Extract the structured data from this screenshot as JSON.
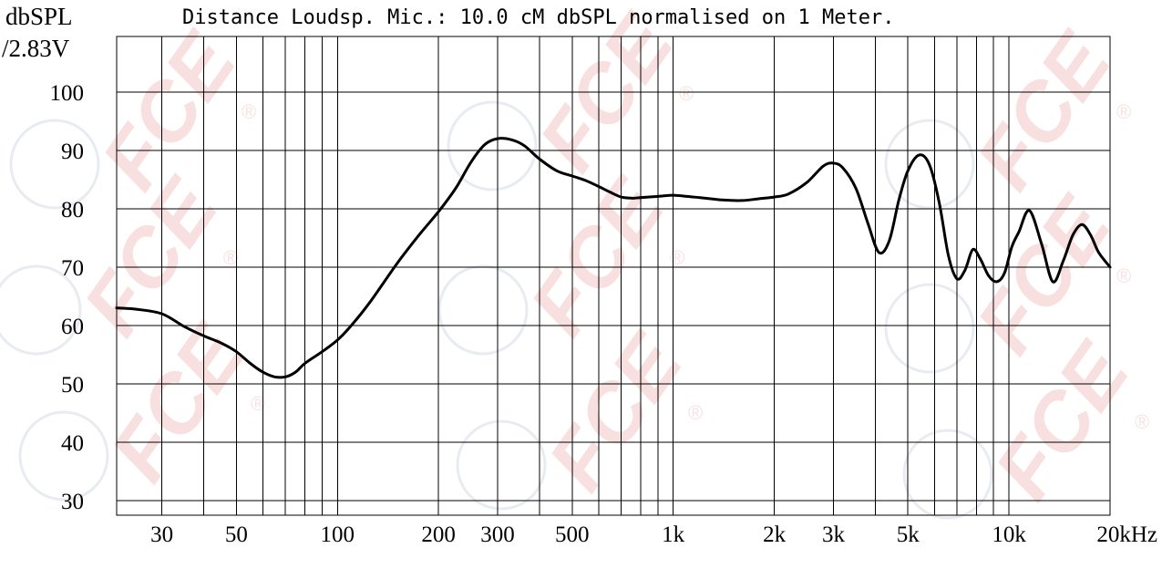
{
  "chart_data": {
    "type": "line",
    "title": "Distance Loudsp. Mic.: 10.0 cM dbSPL normalised on 1 Meter.",
    "ylabel_line1": "dbSPL",
    "ylabel_line2": "/2.83V",
    "x_scale": "log",
    "xlim": [
      22,
      20000
    ],
    "ylim": [
      27.5,
      109.5
    ],
    "grid": true,
    "y_ticks": [
      30,
      40,
      50,
      60,
      70,
      80,
      90,
      100
    ],
    "y_tick_labels": [
      "30",
      "40",
      "50",
      "60",
      "70",
      "80",
      "90",
      "100"
    ],
    "x_tick_values": [
      30,
      50,
      100,
      200,
      300,
      500,
      1000,
      2000,
      3000,
      5000,
      10000,
      20000
    ],
    "x_tick_labels": [
      "30",
      "50",
      "100",
      "200",
      "300",
      "500",
      "1k",
      "2k",
      "3k",
      "5k",
      "10k",
      "20kHz"
    ],
    "x_grid_values": [
      30,
      40,
      50,
      60,
      70,
      80,
      90,
      100,
      200,
      300,
      400,
      500,
      600,
      700,
      800,
      900,
      1000,
      2000,
      3000,
      4000,
      5000,
      6000,
      7000,
      8000,
      9000,
      10000,
      20000
    ],
    "series": [
      {
        "color": "#000000",
        "x": [
          22,
          25,
          30,
          35,
          40,
          45,
          50,
          55,
          60,
          65,
          70,
          75,
          80,
          90,
          100,
          110,
          125,
          150,
          175,
          200,
          225,
          250,
          275,
          300,
          330,
          360,
          400,
          450,
          500,
          550,
          600,
          650,
          700,
          750,
          800,
          900,
          1000,
          1100,
          1200,
          1400,
          1600,
          1800,
          2000,
          2200,
          2500,
          2800,
          3000,
          3200,
          3500,
          3800,
          4100,
          4400,
          4700,
          5000,
          5400,
          5800,
          6200,
          6600,
          7000,
          7400,
          7800,
          8200,
          8700,
          9200,
          9700,
          10200,
          10700,
          11500,
          12500,
          13500,
          14500,
          15500,
          16500,
          17500,
          18500,
          20000
        ],
        "y": [
          63,
          62.8,
          62,
          59.8,
          58.2,
          57,
          55.5,
          53.5,
          52,
          51.2,
          51.2,
          52,
          53.5,
          55.5,
          57.5,
          60,
          64,
          70.5,
          75.5,
          79.5,
          83.5,
          88,
          91,
          92,
          91.8,
          90.8,
          88.5,
          86.5,
          85.6,
          84.8,
          83.8,
          82.8,
          82,
          81.8,
          81.9,
          82.1,
          82.3,
          82.1,
          81.9,
          81.5,
          81.4,
          81.7,
          82,
          82.5,
          84.5,
          87.3,
          87.8,
          87,
          83.5,
          77.5,
          72.5,
          74.5,
          81.5,
          86.5,
          89.2,
          87.5,
          81,
          72,
          68,
          69.5,
          73,
          71.5,
          68.5,
          67.5,
          69,
          73.5,
          76,
          79.7,
          74,
          67.5,
          71,
          75.5,
          77.3,
          75.5,
          72.5,
          70
        ]
      }
    ]
  },
  "watermark": {
    "text": "FCE",
    "mark": "®",
    "color": "#f4c7c7"
  }
}
